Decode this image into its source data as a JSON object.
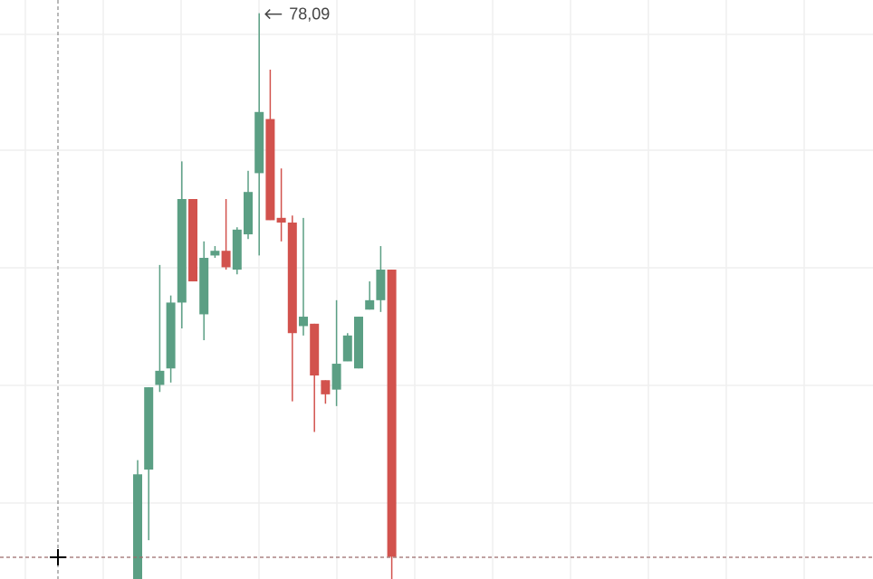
{
  "chart_data": {
    "type": "candlestick",
    "annotation": "78,09",
    "categories": [
      null,
      null,
      null,
      null,
      null,
      null,
      null,
      null,
      null,
      null,
      null,
      null,
      null,
      null,
      null,
      null,
      null,
      null,
      null,
      null,
      null,
      null,
      null,
      null
    ],
    "open": [
      75.67,
      76.15,
      76.51,
      76.58,
      76.86,
      77.3,
      76.81,
      77.06,
      77.08,
      77.0,
      77.15,
      77.41,
      77.64,
      77.22,
      77.2,
      76.76,
      76.77,
      76.53,
      76.49,
      76.61,
      76.58,
      76.83,
      76.87,
      77.0
    ],
    "high": [
      76.19,
      76.5,
      77.02,
      76.89,
      77.46,
      77.3,
      77.12,
      77.1,
      77.3,
      77.18,
      77.42,
      78.09,
      77.85,
      77.43,
      77.23,
      77.22,
      76.77,
      76.53,
      76.87,
      76.73,
      76.8,
      76.95,
      77.1,
      77.0
    ],
    "low": [
      75.61,
      75.85,
      76.48,
      76.52,
      76.75,
      76.95,
      76.7,
      77.05,
      77.0,
      76.98,
      77.13,
      77.06,
      77.21,
      77.12,
      76.44,
      76.72,
      76.31,
      76.43,
      76.42,
      76.61,
      76.58,
      76.83,
      76.82,
      75.61
    ],
    "close": [
      76.13,
      76.5,
      76.57,
      76.86,
      77.3,
      76.95,
      77.05,
      77.08,
      77.01,
      77.17,
      77.33,
      77.67,
      77.21,
      77.2,
      76.73,
      76.8,
      76.55,
      76.47,
      76.6,
      76.72,
      76.8,
      76.87,
      77.0,
      75.78
    ],
    "up_color": "#5b9f84",
    "down_color": "#d2524d",
    "ylim": [
      75.685,
      78.146
    ]
  }
}
